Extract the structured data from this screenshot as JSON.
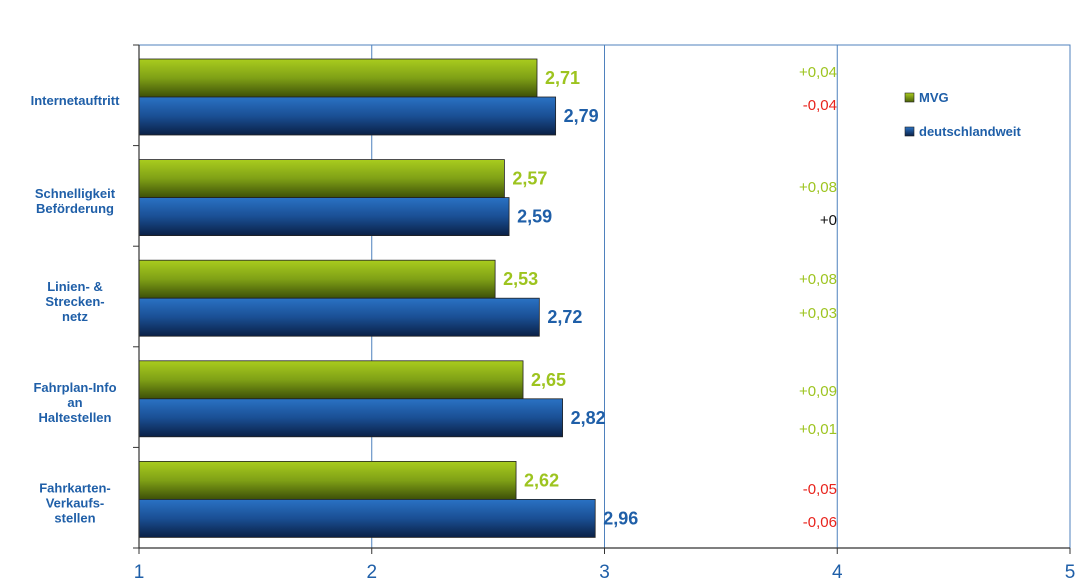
{
  "chart_data": {
    "type": "bar",
    "orientation": "horizontal",
    "categories": [
      [
        "Internetauftritt"
      ],
      [
        "Schnelligkeit",
        "Beförderung"
      ],
      [
        "Linien- &",
        "Strecken-",
        "netz"
      ],
      [
        "Fahrplan-Info",
        "an",
        "Haltestellen"
      ],
      [
        "Fahrkarten-",
        "Verkaufs-",
        "stellen"
      ]
    ],
    "series": [
      {
        "name": "MVG",
        "color": "#8fb21c",
        "label_color": "#9dc41f",
        "values": [
          2.71,
          2.57,
          2.53,
          2.65,
          2.62
        ],
        "value_labels": [
          "2,71",
          "2,57",
          "2,53",
          "2,65",
          "2,62"
        ]
      },
      {
        "name": "deutschlandweit",
        "color": "#1f5fa8",
        "label_color": "#1f5fa8",
        "values": [
          2.79,
          2.59,
          2.72,
          2.82,
          2.96
        ],
        "value_labels": [
          "2,79",
          "2,59",
          "2,72",
          "2,82",
          "2,96"
        ]
      }
    ],
    "changes": [
      {
        "text": "+0,04",
        "color": "#9dc41f"
      },
      {
        "text": "-0,04",
        "color": "#e8231c"
      },
      {
        "text": "+0,08",
        "color": "#9dc41f"
      },
      {
        "text": "+0",
        "color": "#111111"
      },
      {
        "text": "+0,08",
        "color": "#9dc41f"
      },
      {
        "text": "+0,03",
        "color": "#9dc41f"
      },
      {
        "text": "+0,09",
        "color": "#9dc41f"
      },
      {
        "text": "+0,01",
        "color": "#9dc41f"
      },
      {
        "text": "-0,05",
        "color": "#e8231c"
      },
      {
        "text": "-0,06",
        "color": "#e8231c"
      }
    ],
    "xlim": [
      1,
      5
    ],
    "xticks": [
      1,
      2,
      3,
      4,
      5
    ],
    "grid": "vertical",
    "legend_position": "top-right",
    "title": "",
    "xlabel": "",
    "ylabel": ""
  }
}
